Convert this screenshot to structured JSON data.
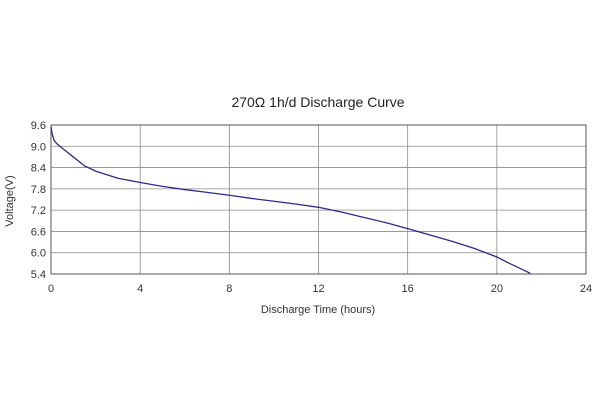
{
  "chart_data": {
    "type": "line",
    "title": "270Ω 1h/d Discharge Curve",
    "xlabel": "Discharge Time (hours)",
    "ylabel": "Voltage(V)",
    "xlim": [
      0,
      24
    ],
    "ylim": [
      5.4,
      9.6
    ],
    "xticks": [
      "0",
      "4",
      "8",
      "12",
      "16",
      "20",
      "24"
    ],
    "yticks": [
      "9.6",
      "9.0",
      "8.4",
      "7.8",
      "7.2",
      "6.6",
      "6.0",
      "5.4"
    ],
    "grid": true,
    "legend": "none",
    "series": [
      {
        "color": "#2b2b8c",
        "x": [
          0,
          0.05,
          0.15,
          0.3,
          0.6,
          1.0,
          1.5,
          2.0,
          3.0,
          4.0,
          5.0,
          6.0,
          7.0,
          8.0,
          9.0,
          10.0,
          11.0,
          12.0,
          13.0,
          14.0,
          15.0,
          16.0,
          17.0,
          18.0,
          19.0,
          20.0,
          20.5,
          21.0,
          21.5
        ],
        "y": [
          9.55,
          9.35,
          9.15,
          9.05,
          8.9,
          8.7,
          8.45,
          8.3,
          8.1,
          7.98,
          7.87,
          7.78,
          7.7,
          7.62,
          7.53,
          7.45,
          7.37,
          7.28,
          7.15,
          7.0,
          6.85,
          6.68,
          6.5,
          6.32,
          6.12,
          5.88,
          5.72,
          5.57,
          5.42
        ]
      }
    ]
  }
}
